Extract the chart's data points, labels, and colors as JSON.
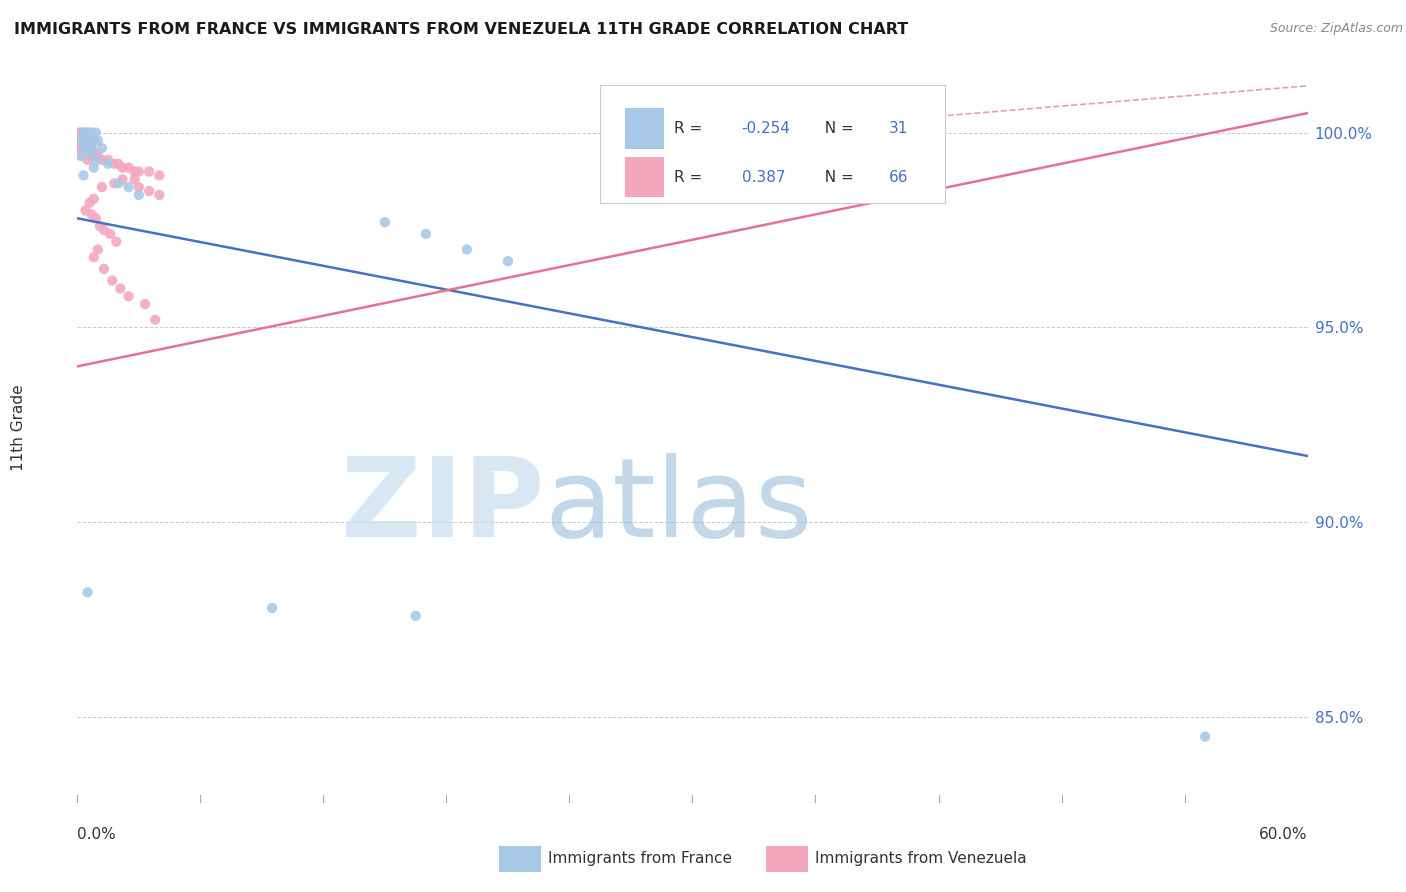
{
  "title": "IMMIGRANTS FROM FRANCE VS IMMIGRANTS FROM VENEZUELA 11TH GRADE CORRELATION CHART",
  "source": "Source: ZipAtlas.com",
  "ylabel": "11th Grade",
  "xmin": 0.0,
  "xmax": 0.6,
  "ymin": 0.828,
  "ymax": 1.018,
  "france_R": -0.254,
  "france_N": 31,
  "venezuela_R": 0.387,
  "venezuela_N": 66,
  "france_color": "#a8c8e8",
  "venezuela_color": "#f4a8be",
  "france_line_color": "#4472c4",
  "venezuela_line_color": "#e87090",
  "dashed_line_color": "#e0a0b8",
  "legend_france_label": "Immigrants from France",
  "legend_venezuela_label": "Immigrants from Venezuela",
  "background_color": "#ffffff",
  "france_line_x0": 0.0,
  "france_line_y0": 0.978,
  "france_line_x1": 0.6,
  "france_line_y1": 0.917,
  "venezuela_line_x0": 0.0,
  "venezuela_line_y0": 0.94,
  "venezuela_line_x1": 0.6,
  "venezuela_line_y1": 1.005,
  "dashed_line_x0": 0.3,
  "dashed_line_y0": 0.999,
  "dashed_line_x1": 0.6,
  "dashed_line_y1": 1.012,
  "france_x": [
    0.003,
    0.005,
    0.007,
    0.009,
    0.004,
    0.006,
    0.002,
    0.008,
    0.01,
    0.003,
    0.005,
    0.007,
    0.012,
    0.004,
    0.006,
    0.002,
    0.009,
    0.015,
    0.008,
    0.003,
    0.02,
    0.025,
    0.03,
    0.15,
    0.17,
    0.19,
    0.21,
    0.005,
    0.095,
    0.165,
    0.55
  ],
  "france_y": [
    1.0,
    1.0,
    1.0,
    1.0,
    0.999,
    0.999,
    0.998,
    0.998,
    0.998,
    0.997,
    0.997,
    0.996,
    0.996,
    0.995,
    0.995,
    0.994,
    0.993,
    0.992,
    0.991,
    0.989,
    0.987,
    0.986,
    0.984,
    0.977,
    0.974,
    0.97,
    0.967,
    0.882,
    0.878,
    0.876,
    0.845
  ],
  "venezuela_x": [
    0.002,
    0.004,
    0.001,
    0.003,
    0.006,
    0.002,
    0.005,
    0.003,
    0.001,
    0.004,
    0.002,
    0.006,
    0.003,
    0.001,
    0.004,
    0.002,
    0.007,
    0.003,
    0.005,
    0.001,
    0.004,
    0.006,
    0.002,
    0.003,
    0.001,
    0.005,
    0.003,
    0.008,
    0.002,
    0.01,
    0.007,
    0.005,
    0.012,
    0.015,
    0.018,
    0.02,
    0.022,
    0.025,
    0.028,
    0.03,
    0.035,
    0.04,
    0.028,
    0.022,
    0.018,
    0.012,
    0.03,
    0.035,
    0.04,
    0.008,
    0.006,
    0.004,
    0.007,
    0.009,
    0.011,
    0.013,
    0.016,
    0.019,
    0.01,
    0.008,
    0.013,
    0.017,
    0.021,
    0.025,
    0.033,
    0.038
  ],
  "venezuela_y": [
    1.0,
    1.0,
    1.0,
    1.0,
    1.0,
    0.999,
    0.999,
    0.999,
    0.999,
    0.999,
    0.998,
    0.998,
    0.998,
    0.998,
    0.997,
    0.997,
    0.997,
    0.997,
    0.997,
    0.996,
    0.996,
    0.996,
    0.996,
    0.995,
    0.995,
    0.995,
    0.995,
    0.995,
    0.994,
    0.994,
    0.994,
    0.993,
    0.993,
    0.993,
    0.992,
    0.992,
    0.991,
    0.991,
    0.99,
    0.99,
    0.99,
    0.989,
    0.988,
    0.988,
    0.987,
    0.986,
    0.986,
    0.985,
    0.984,
    0.983,
    0.982,
    0.98,
    0.979,
    0.978,
    0.976,
    0.975,
    0.974,
    0.972,
    0.97,
    0.968,
    0.965,
    0.962,
    0.96,
    0.958,
    0.956,
    0.952
  ]
}
